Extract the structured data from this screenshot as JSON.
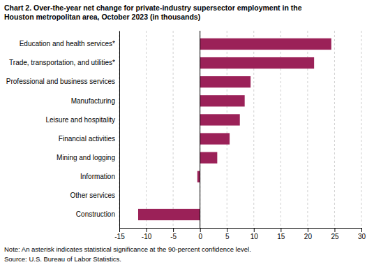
{
  "chart_data": {
    "type": "bar",
    "orientation": "horizontal",
    "title": [
      "Chart 2. Over-the-year net change for private-industry supersector employment in the",
      "Houston metropolitan area, October 2023  (in thousands)"
    ],
    "categories": [
      "Construction",
      "Other services",
      "Information",
      "Mining and logging",
      "Financial activities",
      "Leisure and hospitality",
      "Manufacturing",
      "Professional and business services",
      "Trade, transportation, and utilities*",
      "Education and health services*"
    ],
    "values": [
      -11.5,
      0.0,
      -0.5,
      3.2,
      5.5,
      7.4,
      8.3,
      9.4,
      21.2,
      24.4
    ],
    "color": "#9B2158",
    "xlim": [
      -15,
      30
    ],
    "xticks": [
      -15,
      -10,
      -5,
      0,
      5,
      10,
      15,
      20,
      25,
      30
    ],
    "grid": true,
    "note": "Note: An asterisk indicates statistical significance at the 90-percent confidence level.",
    "source": "Source: U.S. Bureau of Labor Statistics."
  }
}
